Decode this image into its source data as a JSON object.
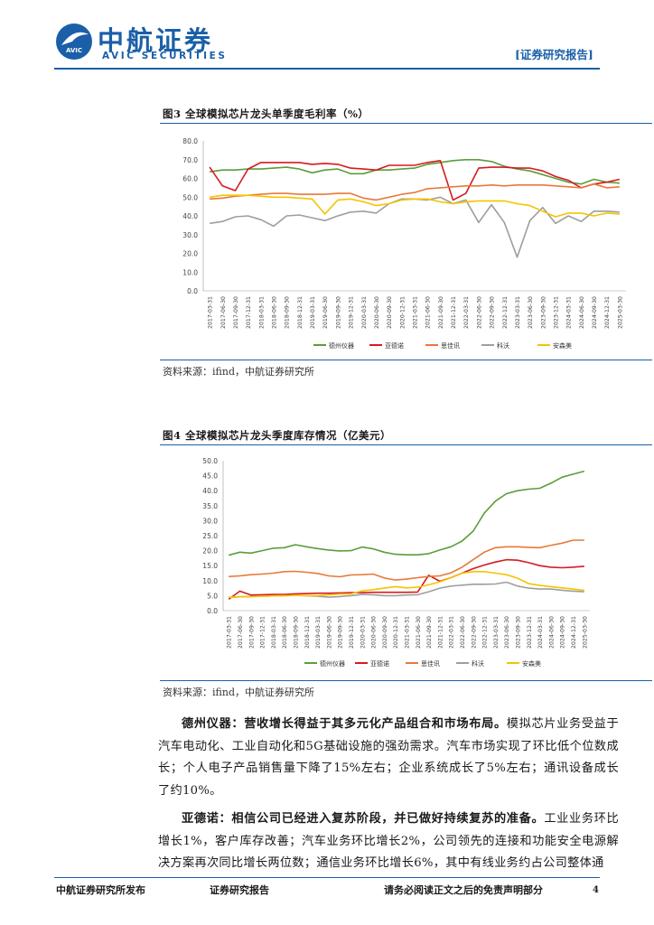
{
  "header": {
    "company_cn": "中航证券",
    "company_en": "AVIC SECURITIES",
    "emblem_text": "AVIC",
    "report_tag": "[证券研究报告]"
  },
  "figure3": {
    "title": "图3 全球模拟芯片龙头单季度毛利率（%）",
    "source": "资料来源：ifind，中航证券研究所"
  },
  "figure4": {
    "title": "图4 全球模拟芯片龙头季度库存情况（亿美元）",
    "source": "资料来源：ifind，中航证券研究所"
  },
  "paragraphs": [
    {
      "lead": "德州仪器：营收增长得益于其多元化产品组合和市场布局。",
      "body": "模拟芯片业务受益于汽车电动化、工业自动化和5G基础设施的强劲需求。汽车市场实现了环比低个位数成长；个人电子产品销售量下降了15%左右；企业系统成长了5%左右；通讯设备成长了约10%。"
    },
    {
      "lead": "亚德诺：相信公司已经进入复苏阶段，并已做好持续复苏的准备。",
      "body": "工业业务环比增长1%，客户库存改善；汽车业务环比增长2%，公司领先的连接和功能安全电源解决方案再次同比增长两位数；通信业务环比增长6%，其中有线业务约占公司整体通"
    }
  ],
  "footer": {
    "left": "中航证券研究所发布",
    "center": "证券研究报告",
    "right": "请务必阅读正文之后的免责声明部分",
    "page": "4"
  },
  "chart_data": [
    {
      "type": "line",
      "title": "全球模拟芯片龙头单季度毛利率（%）",
      "ylim": [
        0,
        80
      ],
      "yticks": [
        "0.0",
        "10.0",
        "20.0",
        "30.0",
        "40.0",
        "50.0",
        "60.0",
        "70.0",
        "80.0"
      ],
      "categories": [
        "2017-03-31",
        "2017-06-30",
        "2017-09-30",
        "2017-12-31",
        "2018-03-31",
        "2018-06-30",
        "2018-09-30",
        "2018-12-31",
        "2019-03-31",
        "2019-06-30",
        "2019-09-30",
        "2019-12-31",
        "2020-03-31",
        "2020-06-30",
        "2020-09-30",
        "2020-12-31",
        "2021-03-31",
        "2021-06-30",
        "2021-09-30",
        "2021-12-31",
        "2022-03-31",
        "2022-06-30",
        "2022-09-30",
        "2022-12-31",
        "2023-03-31",
        "2023-06-30",
        "2023-09-30",
        "2023-12-31",
        "2024-03-31",
        "2024-06-30",
        "2024-09-30",
        "2024-12-31",
        "2025-03-30"
      ],
      "series": [
        {
          "name": "德州仪器",
          "color": "#5a9e3a",
          "values": [
            63.5,
            64.5,
            64.5,
            65.0,
            65.0,
            65.5,
            66.0,
            65.0,
            63.0,
            64.5,
            65.0,
            62.5,
            62.5,
            64.5,
            64.5,
            65.0,
            65.5,
            67.5,
            68.5,
            69.5,
            70.0,
            70.0,
            69.0,
            66.5,
            65.0,
            64.0,
            62.0,
            60.0,
            58.0,
            57.0,
            59.5,
            58.0,
            57.5
          ]
        },
        {
          "name": "亚德诺",
          "color": "#d71920",
          "values": [
            66.0,
            56.0,
            53.5,
            65.0,
            68.5,
            68.5,
            68.5,
            68.5,
            67.5,
            68.0,
            67.5,
            65.5,
            65.0,
            64.5,
            67.0,
            67.0,
            67.0,
            68.5,
            69.5,
            48.5,
            52.0,
            65.5,
            66.0,
            66.0,
            65.5,
            65.5,
            64.0,
            61.0,
            59.0,
            55.0,
            57.0,
            58.0,
            59.5
          ]
        },
        {
          "name": "思佳讯",
          "color": "#e8793a",
          "values": [
            49.0,
            49.5,
            50.5,
            51.0,
            51.5,
            52.0,
            52.0,
            51.5,
            51.5,
            51.5,
            52.0,
            52.0,
            49.5,
            48.5,
            50.0,
            51.5,
            52.5,
            54.5,
            55.0,
            55.5,
            56.0,
            56.0,
            56.5,
            56.0,
            56.5,
            56.5,
            56.5,
            56.0,
            55.5,
            55.0,
            57.0,
            55.0,
            55.5
          ]
        },
        {
          "name": "科沃",
          "color": "#9e9e9e",
          "values": [
            36.0,
            37.0,
            39.5,
            40.0,
            38.0,
            34.5,
            40.0,
            40.5,
            39.0,
            37.5,
            40.0,
            42.0,
            42.5,
            41.5,
            46.5,
            49.0,
            49.0,
            48.5,
            50.0,
            46.5,
            48.5,
            36.5,
            46.0,
            36.5,
            18.0,
            37.5,
            44.5,
            36.0,
            40.0,
            37.0,
            42.5,
            42.5,
            42.0
          ]
        },
        {
          "name": "安森美",
          "color": "#f5c400",
          "values": [
            50.0,
            51.0,
            51.0,
            51.0,
            50.5,
            50.0,
            50.0,
            49.5,
            49.0,
            41.0,
            48.5,
            49.0,
            47.5,
            45.5,
            46.5,
            48.5,
            49.0,
            49.0,
            47.5,
            46.5,
            47.5,
            48.0,
            48.0,
            48.0,
            46.5,
            45.5,
            42.5,
            39.5,
            41.5,
            41.5,
            40.0,
            41.5,
            41.0
          ]
        }
      ]
    },
    {
      "type": "line",
      "title": "全球模拟芯片龙头季度库存情况（亿美元）",
      "ylim": [
        0,
        50
      ],
      "yticks": [
        "0.0",
        "5.0",
        "10.0",
        "15.0",
        "20.0",
        "25.0",
        "30.0",
        "35.0",
        "40.0",
        "45.0",
        "50.0"
      ],
      "categories": [
        "2017-03-31",
        "2017-06-30",
        "2017-09-30",
        "2017-12-31",
        "2018-03-31",
        "2018-06-30",
        "2018-09-30",
        "2018-12-31",
        "2019-03-31",
        "2019-06-30",
        "2019-09-30",
        "2019-12-31",
        "2020-03-31",
        "2020-06-30",
        "2020-09-30",
        "2020-12-31",
        "2021-03-31",
        "2021-06-30",
        "2021-09-30",
        "2021-12-31",
        "2022-03-31",
        "2022-06-30",
        "2022-09-30",
        "2022-12-31",
        "2023-03-31",
        "2023-06-30",
        "2023-09-30",
        "2023-12-31",
        "2024-03-31",
        "2024-06-30",
        "2024-09-30",
        "2024-12-31",
        "2025-03-30"
      ],
      "series": [
        {
          "name": "德州仪器",
          "color": "#5a9e3a",
          "values": [
            18.5,
            19.5,
            19.2,
            20.0,
            20.8,
            21.0,
            22.0,
            21.3,
            20.7,
            20.2,
            19.9,
            20.0,
            21.2,
            20.6,
            19.5,
            18.8,
            18.6,
            18.6,
            19.0,
            20.2,
            21.3,
            23.2,
            26.5,
            32.5,
            36.5,
            39.0,
            40.0,
            40.5,
            40.8,
            42.5,
            44.5,
            45.5,
            46.5
          ]
        },
        {
          "name": "亚德诺",
          "color": "#d71920",
          "values": [
            3.8,
            6.5,
            5.2,
            5.3,
            5.4,
            5.4,
            5.6,
            5.7,
            5.8,
            5.8,
            5.9,
            6.0,
            6.0,
            6.1,
            6.1,
            6.1,
            6.1,
            6.2,
            11.8,
            9.8,
            11.0,
            12.5,
            14.0,
            15.2,
            16.2,
            17.0,
            16.8,
            16.0,
            15.0,
            14.5,
            14.3,
            14.5,
            14.8
          ]
        },
        {
          "name": "思佳讯",
          "color": "#e8793a",
          "values": [
            11.4,
            11.6,
            12.0,
            12.2,
            12.5,
            13.0,
            13.1,
            12.8,
            12.4,
            11.6,
            11.3,
            11.9,
            12.0,
            12.2,
            10.9,
            10.2,
            10.5,
            11.0,
            11.4,
            11.6,
            12.6,
            14.5,
            17.0,
            19.5,
            21.0,
            21.3,
            21.3,
            21.1,
            21.0,
            21.8,
            22.5,
            23.5,
            23.5
          ]
        },
        {
          "name": "科沃",
          "color": "#9e9e9e",
          "values": [
            4.4,
            4.6,
            4.7,
            4.8,
            4.9,
            5.0,
            5.1,
            5.0,
            4.8,
            4.5,
            4.7,
            5.0,
            5.4,
            5.3,
            5.0,
            5.0,
            5.2,
            5.3,
            6.3,
            7.5,
            8.2,
            8.5,
            8.8,
            8.8,
            8.9,
            9.5,
            8.2,
            7.5,
            7.2,
            7.2,
            6.8,
            6.5,
            6.3
          ]
        },
        {
          "name": "安森美",
          "color": "#f5c400",
          "values": [
            4.5,
            4.6,
            4.7,
            4.8,
            4.9,
            5.0,
            5.1,
            5.0,
            5.0,
            5.3,
            5.5,
            5.6,
            6.6,
            7.0,
            7.5,
            8.0,
            7.6,
            7.8,
            8.6,
            9.6,
            11.0,
            12.5,
            13.0,
            13.0,
            12.5,
            12.0,
            10.8,
            9.0,
            8.4,
            8.0,
            7.6,
            7.2,
            6.8
          ]
        }
      ]
    }
  ]
}
